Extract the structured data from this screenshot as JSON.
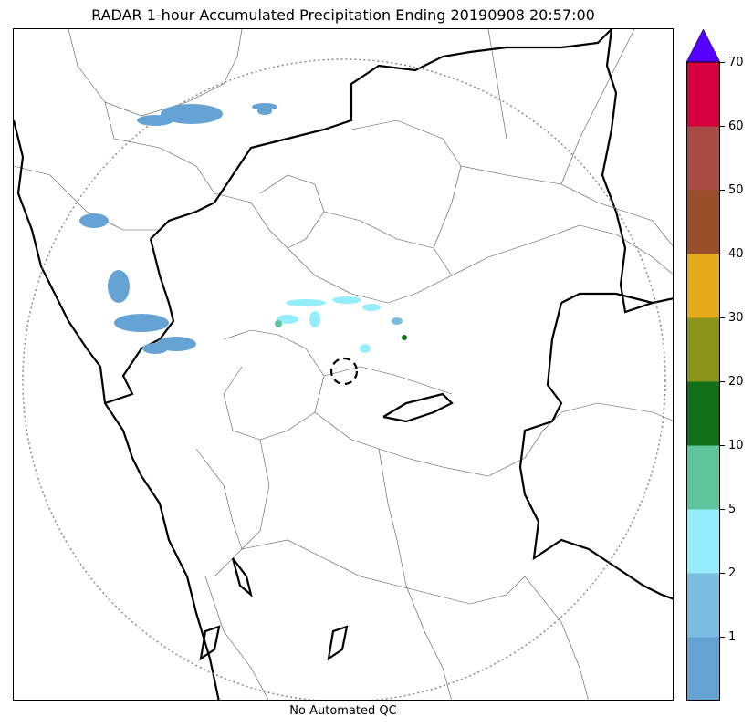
{
  "title": "RADAR 1-hour Accumulated Precipitation Ending 20190908 20:57:00",
  "footer_note": "No Automated QC",
  "colorbar": {
    "bins": [
      {
        "from": 0,
        "to": 1,
        "color": "#66a3d5"
      },
      {
        "from": 1,
        "to": 2,
        "color": "#7bbde0"
      },
      {
        "from": 2,
        "to": 5,
        "color": "#96eefc"
      },
      {
        "from": 5,
        "to": 10,
        "color": "#5ec49b"
      },
      {
        "from": 10,
        "to": 20,
        "color": "#0f7018"
      },
      {
        "from": 20,
        "to": 30,
        "color": "#8a9418"
      },
      {
        "from": 30,
        "to": 40,
        "color": "#e6aa1a"
      },
      {
        "from": 40,
        "to": 50,
        "color": "#9a4f2a"
      },
      {
        "from": 50,
        "to": 60,
        "color": "#a94b45"
      },
      {
        "from": 60,
        "to": 70,
        "color": "#d6003f"
      }
    ],
    "extend_color": "#5500ff",
    "tick_labels": [
      "1",
      "2",
      "5",
      "10",
      "20",
      "30",
      "40",
      "50",
      "60",
      "70"
    ]
  },
  "map": {
    "range_ring_style": "dotted",
    "center_marker_style": "dashed-circle",
    "state_border_color": "#000000",
    "district_border_color": "#555555",
    "precip_cells": [
      {
        "bin": 0
      },
      {
        "bin": 0
      },
      {
        "bin": 0
      },
      {
        "bin": 0
      },
      {
        "bin": 0
      },
      {
        "bin": 0
      },
      {
        "bin": 0
      },
      {
        "bin": 0
      },
      {
        "bin": 0
      },
      {
        "bin": 2
      },
      {
        "bin": 2
      },
      {
        "bin": 2
      },
      {
        "bin": 2
      },
      {
        "bin": 2
      },
      {
        "bin": 2
      },
      {
        "bin": 3
      },
      {
        "bin": 1
      },
      {
        "bin": 4
      }
    ]
  }
}
